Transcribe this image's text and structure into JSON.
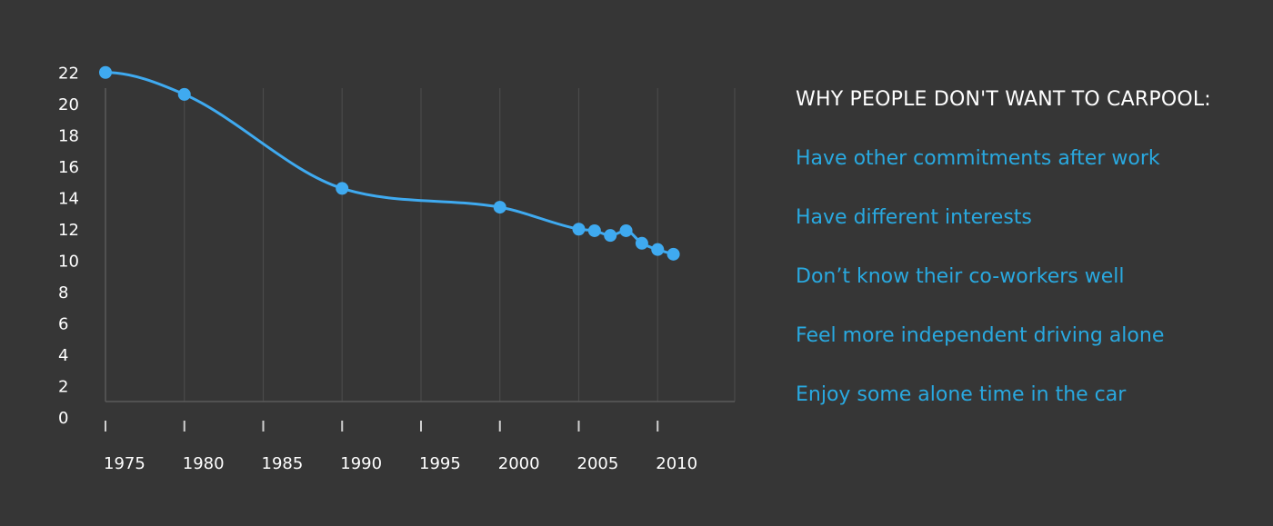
{
  "colors": {
    "background": "#363636",
    "line": "#3faaf0",
    "reason_text": "#29a9e0",
    "heading_text": "#ffffff",
    "grid": "#4a4a4a",
    "axis": "#5a5a5a",
    "tick_mark": "#d0d0d0"
  },
  "chart_data": {
    "type": "line",
    "title": "",
    "xlabel": "",
    "ylabel": "",
    "ylim": [
      0,
      22
    ],
    "xlim": [
      1975,
      2015
    ],
    "y_ticks": [
      "0",
      "2",
      "4",
      "6",
      "8",
      "10",
      "12",
      "14",
      "16",
      "18",
      "20",
      "22"
    ],
    "x_ticks": [
      "1975",
      "1980",
      "1985",
      "1990",
      "1995",
      "2000",
      "2005",
      "2010"
    ],
    "grid": "vertical",
    "series": [
      {
        "x": [
          1975,
          1980,
          1990,
          2000,
          2005,
          2006,
          2007,
          2008,
          2009,
          2010,
          2011
        ],
        "y": [
          21.0,
          19.6,
          13.6,
          12.4,
          11.0,
          10.9,
          10.6,
          10.9,
          10.1,
          9.7,
          9.4
        ]
      }
    ]
  },
  "panel": {
    "heading": "WHY PEOPLE DON'T WANT TO CARPOOL:",
    "reasons": [
      "Have other commitments after work",
      "Have different interests",
      "Don’t know their co-workers well",
      "Feel more independent driving alone",
      "Enjoy some alone time in the car"
    ]
  }
}
